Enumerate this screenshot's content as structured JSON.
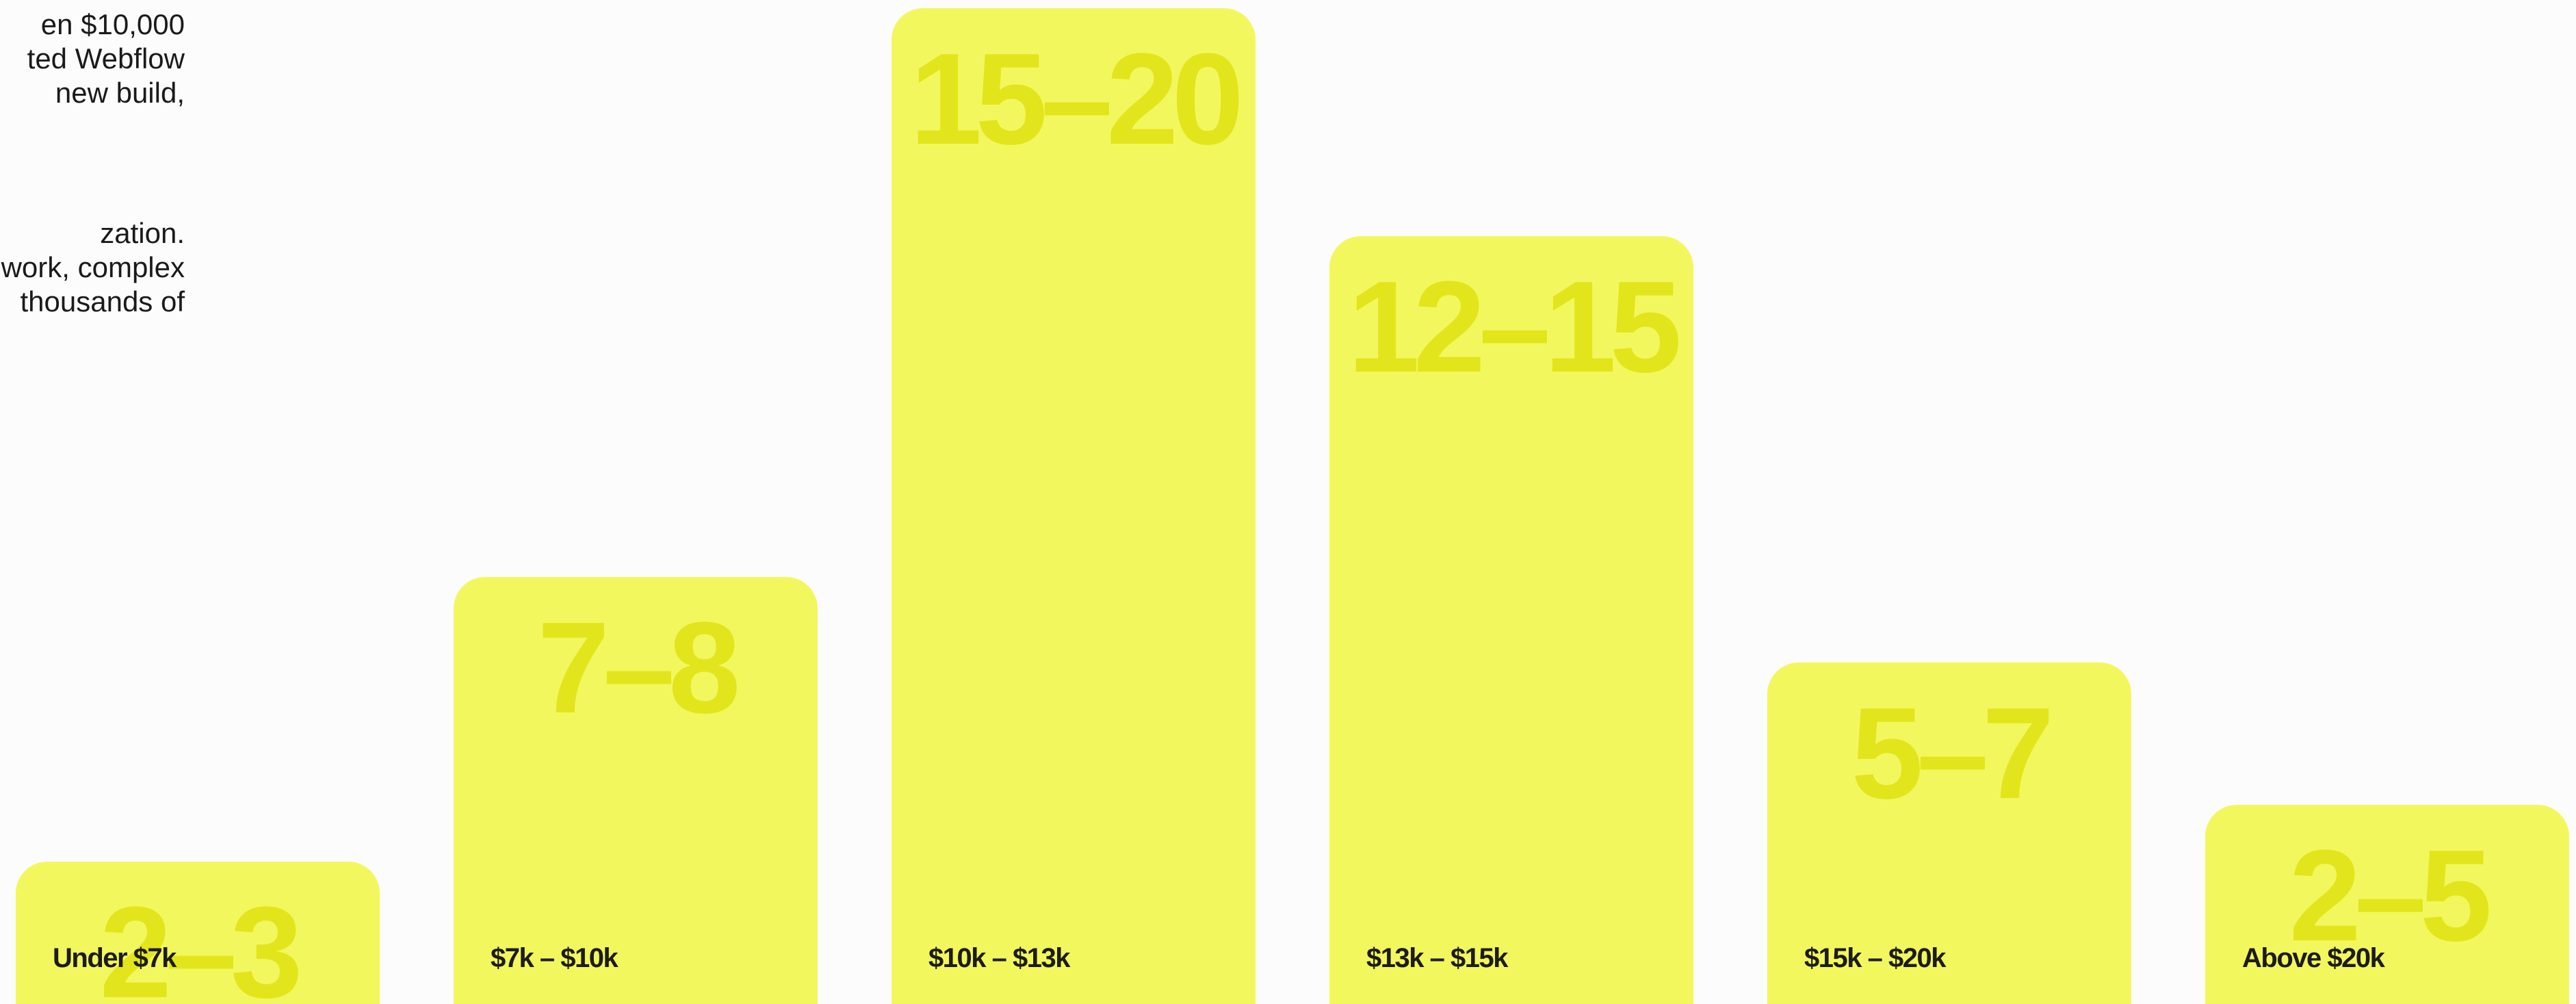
{
  "intro": {
    "paragraph_1": [
      "en $10,000",
      "ted Webflow",
      "new build,"
    ],
    "paragraph_2": [
      "zation.",
      "work, complex",
      "thousands of"
    ]
  },
  "chart_data": {
    "type": "bar",
    "title": "",
    "xlabel": "",
    "ylabel": "",
    "categories": [
      "Under $7k",
      "$7k – $10k",
      "$10k – $13k",
      "$13k – $15k",
      "$15k – $20k",
      "Above $20k"
    ],
    "value_labels": [
      "2–3",
      "7–8",
      "15–20",
      "12–15",
      "5–7",
      "2–5"
    ],
    "values": [
      2.5,
      7.5,
      17.5,
      13.5,
      6,
      3.5
    ],
    "ylim": [
      0,
      17.5
    ],
    "grid": false,
    "legend": "none",
    "colors": {
      "bar": "#f3f75e",
      "value_text": "#e2e51b",
      "label_text": "#1c1c1c",
      "background": "#fcfcfc"
    }
  }
}
